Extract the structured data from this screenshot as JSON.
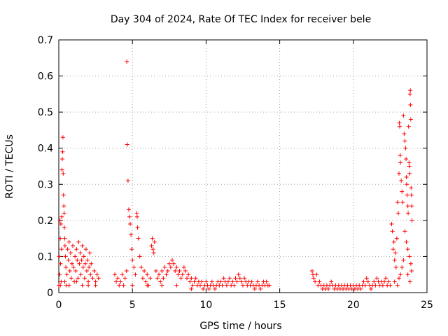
{
  "chart_data": {
    "type": "scatter",
    "title": "Day 304 of 2024, Rate Of TEC Index for receiver bele",
    "xlabel": "GPS time / hours",
    "ylabel": "ROTI / TECUs",
    "xlim": [
      0,
      25
    ],
    "ylim": [
      0,
      0.7
    ],
    "xticks": [
      0,
      5,
      10,
      15,
      20,
      25
    ],
    "yticks": [
      0,
      0.1,
      0.2,
      0.3,
      0.4,
      0.5,
      0.6,
      0.7
    ],
    "grid": true,
    "marker": "+",
    "color": "#ff0000",
    "series": [
      {
        "values": [
          [
            0.0,
            0.02
          ],
          [
            0.03,
            0.1
          ],
          [
            0.06,
            0.05
          ],
          [
            0.08,
            0.2
          ],
          [
            0.1,
            0.15
          ],
          [
            0.12,
            0.08
          ],
          [
            0.14,
            0.19
          ],
          [
            0.16,
            0.03
          ],
          [
            0.18,
            0.12
          ],
          [
            0.2,
            0.21
          ],
          [
            0.22,
            0.34
          ],
          [
            0.24,
            0.37
          ],
          [
            0.26,
            0.39
          ],
          [
            0.28,
            0.43
          ],
          [
            0.3,
            0.33
          ],
          [
            0.32,
            0.27
          ],
          [
            0.34,
            0.24
          ],
          [
            0.36,
            0.22
          ],
          [
            0.38,
            0.18
          ],
          [
            0.4,
            0.15
          ],
          [
            0.42,
            0.13
          ],
          [
            0.45,
            0.1
          ],
          [
            0.48,
            0.07
          ],
          [
            0.5,
            0.02
          ],
          [
            0.55,
            0.05
          ],
          [
            0.6,
            0.12
          ],
          [
            0.65,
            0.09
          ],
          [
            0.7,
            0.14
          ],
          [
            0.75,
            0.06
          ],
          [
            0.8,
            0.11
          ],
          [
            0.85,
            0.04
          ],
          [
            0.9,
            0.08
          ],
          [
            0.95,
            0.13
          ],
          [
            1.0,
            0.07
          ],
          [
            1.05,
            0.03
          ],
          [
            1.1,
            0.1
          ],
          [
            1.15,
            0.06
          ],
          [
            1.2,
            0.12
          ],
          [
            1.25,
            0.09
          ],
          [
            1.3,
            0.04
          ],
          [
            1.35,
            0.14
          ],
          [
            1.4,
            0.08
          ],
          [
            1.45,
            0.11
          ],
          [
            1.5,
            0.05
          ],
          [
            1.55,
            0.09
          ],
          [
            1.6,
            0.13
          ],
          [
            1.65,
            0.07
          ],
          [
            1.7,
            0.1
          ],
          [
            1.75,
            0.04
          ],
          [
            1.8,
            0.08
          ],
          [
            1.85,
            0.12
          ],
          [
            1.9,
            0.06
          ],
          [
            1.95,
            0.09
          ],
          [
            2.0,
            0.03
          ],
          [
            2.05,
            0.07
          ],
          [
            2.1,
            0.11
          ],
          [
            2.15,
            0.05
          ],
          [
            2.2,
            0.08
          ],
          [
            2.3,
            0.04
          ],
          [
            2.4,
            0.06
          ],
          [
            2.5,
            0.03
          ],
          [
            2.6,
            0.05
          ],
          [
            2.7,
            0.04
          ],
          [
            0.1,
            0.02
          ],
          [
            0.4,
            0.03
          ],
          [
            0.7,
            0.02
          ],
          [
            1.2,
            0.03
          ],
          [
            1.6,
            0.02
          ],
          [
            2.0,
            0.02
          ],
          [
            2.5,
            0.02
          ],
          [
            3.8,
            0.05
          ],
          [
            3.9,
            0.03
          ],
          [
            4.0,
            0.04
          ],
          [
            4.1,
            0.02
          ],
          [
            4.2,
            0.03
          ],
          [
            4.3,
            0.05
          ],
          [
            4.4,
            0.02
          ],
          [
            4.5,
            0.04
          ],
          [
            4.6,
            0.06
          ],
          [
            4.62,
            0.64
          ],
          [
            4.65,
            0.41
          ],
          [
            4.7,
            0.31
          ],
          [
            4.75,
            0.23
          ],
          [
            4.8,
            0.21
          ],
          [
            4.85,
            0.19
          ],
          [
            4.9,
            0.16
          ],
          [
            4.95,
            0.12
          ],
          [
            5.0,
            0.09
          ],
          [
            5.1,
            0.07
          ],
          [
            5.2,
            0.05
          ],
          [
            5.3,
            0.22
          ],
          [
            5.32,
            0.21
          ],
          [
            5.35,
            0.18
          ],
          [
            5.4,
            0.15
          ],
          [
            5.5,
            0.1
          ],
          [
            5.6,
            0.07
          ],
          [
            5.7,
            0.04
          ],
          [
            5.8,
            0.06
          ],
          [
            5.9,
            0.03
          ],
          [
            6.0,
            0.05
          ],
          [
            6.1,
            0.02
          ],
          [
            6.2,
            0.04
          ],
          [
            6.3,
            0.13
          ],
          [
            6.35,
            0.15
          ],
          [
            6.4,
            0.12
          ],
          [
            6.45,
            0.11
          ],
          [
            6.5,
            0.14
          ],
          [
            6.6,
            0.06
          ],
          [
            6.7,
            0.04
          ],
          [
            6.8,
            0.05
          ],
          [
            6.9,
            0.03
          ],
          [
            7.0,
            0.06
          ],
          [
            7.1,
            0.04
          ],
          [
            7.2,
            0.07
          ],
          [
            7.3,
            0.05
          ],
          [
            7.4,
            0.06
          ],
          [
            7.5,
            0.08
          ],
          [
            7.6,
            0.07
          ],
          [
            7.7,
            0.09
          ],
          [
            7.8,
            0.08
          ],
          [
            7.9,
            0.06
          ],
          [
            8.0,
            0.07
          ],
          [
            8.1,
            0.05
          ],
          [
            8.2,
            0.06
          ],
          [
            8.3,
            0.04
          ],
          [
            8.4,
            0.05
          ],
          [
            8.5,
            0.07
          ],
          [
            8.6,
            0.06
          ],
          [
            8.7,
            0.04
          ],
          [
            8.8,
            0.05
          ],
          [
            8.9,
            0.03
          ],
          [
            9.0,
            0.04
          ],
          [
            9.1,
            0.02
          ],
          [
            9.2,
            0.03
          ],
          [
            9.3,
            0.04
          ],
          [
            9.4,
            0.02
          ],
          [
            9.5,
            0.03
          ],
          [
            9.6,
            0.02
          ],
          [
            9.7,
            0.03
          ],
          [
            9.8,
            0.01
          ],
          [
            9.9,
            0.02
          ],
          [
            10.0,
            0.03
          ],
          [
            10.1,
            0.02
          ],
          [
            10.2,
            0.01
          ],
          [
            10.3,
            0.02
          ],
          [
            10.4,
            0.03
          ],
          [
            10.5,
            0.02
          ],
          [
            10.6,
            0.01
          ],
          [
            10.7,
            0.02
          ],
          [
            10.8,
            0.03
          ],
          [
            10.9,
            0.02
          ],
          [
            11.0,
            0.03
          ],
          [
            11.1,
            0.02
          ],
          [
            11.2,
            0.04
          ],
          [
            11.3,
            0.03
          ],
          [
            11.4,
            0.02
          ],
          [
            11.5,
            0.03
          ],
          [
            11.6,
            0.04
          ],
          [
            11.7,
            0.02
          ],
          [
            11.8,
            0.03
          ],
          [
            11.9,
            0.02
          ],
          [
            12.0,
            0.04
          ],
          [
            12.1,
            0.03
          ],
          [
            12.2,
            0.05
          ],
          [
            12.3,
            0.04
          ],
          [
            12.4,
            0.03
          ],
          [
            12.5,
            0.02
          ],
          [
            12.6,
            0.04
          ],
          [
            12.7,
            0.03
          ],
          [
            12.8,
            0.02
          ],
          [
            12.9,
            0.03
          ],
          [
            13.0,
            0.02
          ],
          [
            13.1,
            0.03
          ],
          [
            13.2,
            0.02
          ],
          [
            13.3,
            0.01
          ],
          [
            13.4,
            0.02
          ],
          [
            13.5,
            0.03
          ],
          [
            13.6,
            0.02
          ],
          [
            13.7,
            0.01
          ],
          [
            13.8,
            0.02
          ],
          [
            13.9,
            0.03
          ],
          [
            14.0,
            0.02
          ],
          [
            14.1,
            0.03
          ],
          [
            14.2,
            0.02
          ],
          [
            14.3,
            0.02
          ],
          [
            5.0,
            0.02
          ],
          [
            6.0,
            0.02
          ],
          [
            7.0,
            0.02
          ],
          [
            8.0,
            0.02
          ],
          [
            9.0,
            0.01
          ],
          [
            17.2,
            0.06
          ],
          [
            17.25,
            0.05
          ],
          [
            17.3,
            0.04
          ],
          [
            17.4,
            0.03
          ],
          [
            17.5,
            0.05
          ],
          [
            17.6,
            0.02
          ],
          [
            17.7,
            0.03
          ],
          [
            17.8,
            0.02
          ],
          [
            17.9,
            0.01
          ],
          [
            18.0,
            0.02
          ],
          [
            18.1,
            0.01
          ],
          [
            18.2,
            0.02
          ],
          [
            18.3,
            0.01
          ],
          [
            18.4,
            0.02
          ],
          [
            18.5,
            0.03
          ],
          [
            18.6,
            0.02
          ],
          [
            18.7,
            0.01
          ],
          [
            18.8,
            0.02
          ],
          [
            18.9,
            0.01
          ],
          [
            19.0,
            0.02
          ],
          [
            19.1,
            0.01
          ],
          [
            19.2,
            0.02
          ],
          [
            19.3,
            0.01
          ],
          [
            19.4,
            0.02
          ],
          [
            19.5,
            0.01
          ],
          [
            19.6,
            0.02
          ],
          [
            19.7,
            0.01
          ],
          [
            19.8,
            0.02
          ],
          [
            19.9,
            0.01
          ],
          [
            20.0,
            0.02
          ],
          [
            20.1,
            0.01
          ],
          [
            20.2,
            0.02
          ],
          [
            20.3,
            0.01
          ],
          [
            20.4,
            0.02
          ],
          [
            20.5,
            0.01
          ],
          [
            20.6,
            0.02
          ],
          [
            20.7,
            0.03
          ],
          [
            20.8,
            0.02
          ],
          [
            20.9,
            0.04
          ],
          [
            21.0,
            0.03
          ],
          [
            21.1,
            0.02
          ],
          [
            21.2,
            0.01
          ],
          [
            21.3,
            0.02
          ],
          [
            21.4,
            0.03
          ],
          [
            21.5,
            0.02
          ],
          [
            21.6,
            0.04
          ],
          [
            21.7,
            0.03
          ],
          [
            21.8,
            0.02
          ],
          [
            21.9,
            0.03
          ],
          [
            22.0,
            0.02
          ],
          [
            22.1,
            0.03
          ],
          [
            22.2,
            0.04
          ],
          [
            22.3,
            0.02
          ],
          [
            22.4,
            0.03
          ],
          [
            22.5,
            0.02
          ],
          [
            22.6,
            0.19
          ],
          [
            22.65,
            0.17
          ],
          [
            22.7,
            0.12
          ],
          [
            22.75,
            0.14
          ],
          [
            22.8,
            0.09
          ],
          [
            22.85,
            0.11
          ],
          [
            22.9,
            0.07
          ],
          [
            22.95,
            0.15
          ],
          [
            23.0,
            0.25
          ],
          [
            23.05,
            0.22
          ],
          [
            23.1,
            0.33
          ],
          [
            23.12,
            0.47
          ],
          [
            23.15,
            0.46
          ],
          [
            23.18,
            0.38
          ],
          [
            23.2,
            0.36
          ],
          [
            23.25,
            0.31
          ],
          [
            23.3,
            0.28
          ],
          [
            23.35,
            0.25
          ],
          [
            23.4,
            0.49
          ],
          [
            23.45,
            0.44
          ],
          [
            23.5,
            0.42
          ],
          [
            23.55,
            0.4
          ],
          [
            23.58,
            0.37
          ],
          [
            23.6,
            0.32
          ],
          [
            23.62,
            0.3
          ],
          [
            23.65,
            0.27
          ],
          [
            23.7,
            0.24
          ],
          [
            23.72,
            0.22
          ],
          [
            23.75,
            0.46
          ],
          [
            23.78,
            0.36
          ],
          [
            23.8,
            0.35
          ],
          [
            23.82,
            0.33
          ],
          [
            23.85,
            0.55
          ],
          [
            23.87,
            0.56
          ],
          [
            23.88,
            0.52
          ],
          [
            23.9,
            0.48
          ],
          [
            23.92,
            0.29
          ],
          [
            23.95,
            0.27
          ],
          [
            23.97,
            0.24
          ],
          [
            23.98,
            0.2
          ],
          [
            23.5,
            0.17
          ],
          [
            23.6,
            0.14
          ],
          [
            23.7,
            0.12
          ],
          [
            23.8,
            0.1
          ],
          [
            23.9,
            0.08
          ],
          [
            23.95,
            0.06
          ],
          [
            23.4,
            0.09
          ],
          [
            23.3,
            0.07
          ],
          [
            23.2,
            0.05
          ],
          [
            23.1,
            0.04
          ],
          [
            22.8,
            0.03
          ],
          [
            23.0,
            0.02
          ],
          [
            23.85,
            0.03
          ],
          [
            23.7,
            0.05
          ]
        ]
      }
    ]
  }
}
